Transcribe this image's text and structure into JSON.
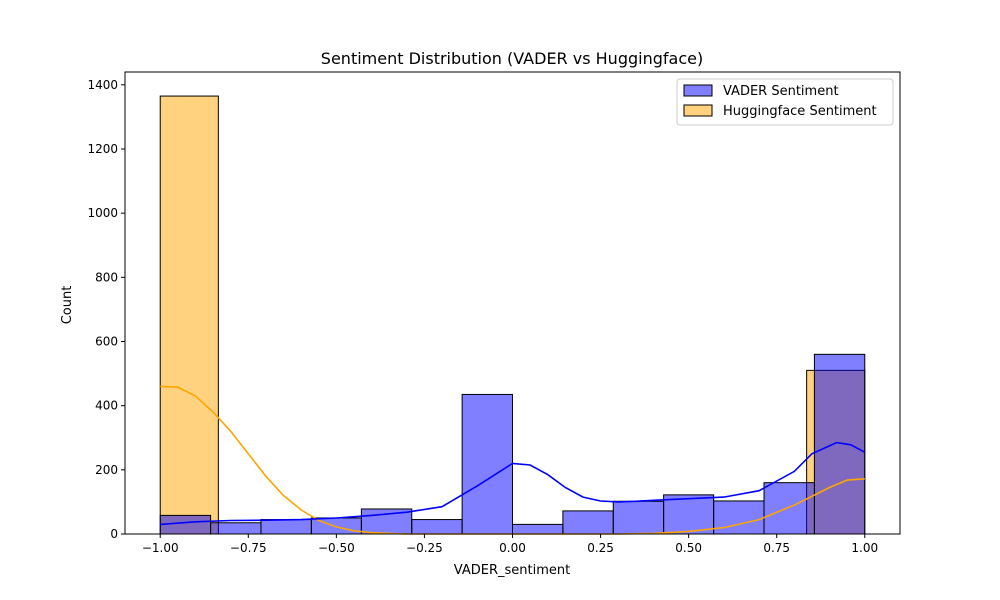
{
  "chart_data": {
    "type": "histogram",
    "title": "Sentiment Distribution (VADER vs Huggingface)",
    "xlabel": "VADER_sentiment",
    "ylabel": "Count",
    "xlim": [
      -1.1,
      1.1
    ],
    "ylim": [
      0,
      1440
    ],
    "xticks": [
      -1.0,
      -0.75,
      -0.5,
      -0.25,
      0.0,
      0.25,
      0.5,
      0.75,
      1.0
    ],
    "xtick_labels": [
      "−1.00",
      "−0.75",
      "−0.50",
      "−0.25",
      "0.00",
      "0.25",
      "0.50",
      "0.75",
      "1.00"
    ],
    "yticks": [
      0,
      200,
      400,
      600,
      800,
      1000,
      1200,
      1400
    ],
    "ytick_labels": [
      "0",
      "200",
      "400",
      "600",
      "800",
      "1000",
      "1200",
      "1400"
    ],
    "grid": false,
    "legend_position": "top-right",
    "series": [
      {
        "name": "VADER Sentiment",
        "color": "#0000ff",
        "bin_edges": [
          -1.0,
          -0.857,
          -0.714,
          -0.571,
          -0.429,
          -0.286,
          -0.143,
          0.0,
          0.143,
          0.286,
          0.429,
          0.571,
          0.714,
          0.857,
          1.0
        ],
        "counts": [
          58,
          35,
          45,
          50,
          78,
          45,
          435,
          30,
          72,
          102,
          122,
          103,
          160,
          560
        ],
        "kde": [
          [
            -1.0,
            30
          ],
          [
            -0.9,
            38
          ],
          [
            -0.8,
            42
          ],
          [
            -0.7,
            43
          ],
          [
            -0.6,
            45
          ],
          [
            -0.5,
            50
          ],
          [
            -0.4,
            58
          ],
          [
            -0.3,
            68
          ],
          [
            -0.2,
            85
          ],
          [
            -0.1,
            150
          ],
          [
            0.0,
            220
          ],
          [
            0.05,
            215
          ],
          [
            0.1,
            185
          ],
          [
            0.15,
            145
          ],
          [
            0.2,
            115
          ],
          [
            0.25,
            103
          ],
          [
            0.3,
            100
          ],
          [
            0.35,
            102
          ],
          [
            0.4,
            105
          ],
          [
            0.5,
            110
          ],
          [
            0.6,
            115
          ],
          [
            0.7,
            135
          ],
          [
            0.8,
            195
          ],
          [
            0.85,
            250
          ],
          [
            0.92,
            285
          ],
          [
            0.96,
            278
          ],
          [
            1.0,
            255
          ]
        ]
      },
      {
        "name": "Huggingface Sentiment",
        "color": "#ffa500",
        "bars": [
          {
            "x0": -1.0,
            "x1": -0.835,
            "count": 1365
          },
          {
            "x0": 0.835,
            "x1": 1.0,
            "count": 510
          }
        ],
        "kde": [
          [
            -1.0,
            460
          ],
          [
            -0.95,
            458
          ],
          [
            -0.9,
            430
          ],
          [
            -0.85,
            380
          ],
          [
            -0.8,
            320
          ],
          [
            -0.75,
            250
          ],
          [
            -0.7,
            180
          ],
          [
            -0.65,
            120
          ],
          [
            -0.6,
            75
          ],
          [
            -0.55,
            42
          ],
          [
            -0.5,
            22
          ],
          [
            -0.45,
            10
          ],
          [
            -0.4,
            4
          ],
          [
            -0.3,
            0
          ],
          [
            0.3,
            0
          ],
          [
            0.4,
            2
          ],
          [
            0.5,
            8
          ],
          [
            0.6,
            20
          ],
          [
            0.7,
            45
          ],
          [
            0.8,
            90
          ],
          [
            0.9,
            145
          ],
          [
            0.95,
            168
          ],
          [
            1.0,
            172
          ]
        ]
      }
    ]
  }
}
